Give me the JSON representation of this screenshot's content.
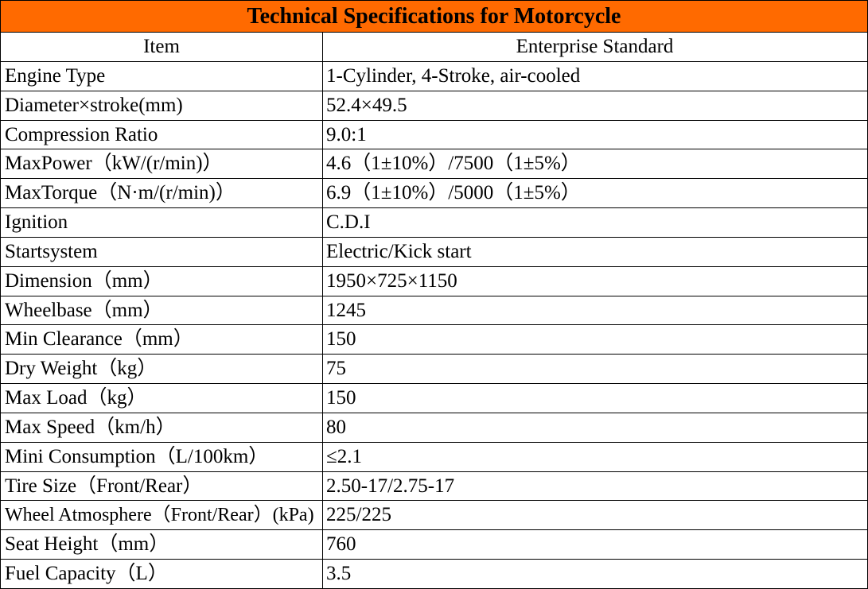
{
  "table": {
    "title": "Technical Specifications for Motorcycle",
    "header": [
      "Item",
      "Enterprise Standard"
    ],
    "rows": [
      [
        "Engine Type",
        "1-Cylinder, 4-Stroke, air-cooled"
      ],
      [
        "Diameter×stroke(mm)",
        "52.4×49.5"
      ],
      [
        "Compression Ratio",
        "9.0:1"
      ],
      [
        "MaxPower（kW/(r/min)）",
        "4.6（1±10%）/7500（1±5%）"
      ],
      [
        "MaxTorque（N·m/(r/min)）",
        "6.9（1±10%）/5000（1±5%）"
      ],
      [
        "Ignition",
        "C.D.I"
      ],
      [
        "Startsystem",
        "Electric/Kick start"
      ],
      [
        "Dimension（mm）",
        "1950×725×1150"
      ],
      [
        "Wheelbase（mm）",
        "1245"
      ],
      [
        "Min Clearance（mm）",
        "150"
      ],
      [
        "Dry Weight（kg）",
        "75"
      ],
      [
        "Max Load（kg）",
        "150"
      ],
      [
        "Max Speed（km/h）",
        "80"
      ],
      [
        "Mini Consumption（L/100km）",
        "≤2.1"
      ],
      [
        "Tire Size（Front/Rear）",
        "2.50-17/2.75-17"
      ],
      [
        "Wheel Atmosphere（Front/Rear）(kPa)",
        "225/225"
      ],
      [
        "Seat Height（mm）",
        "760"
      ],
      [
        "Fuel Capacity（L）",
        "3.5"
      ]
    ]
  }
}
